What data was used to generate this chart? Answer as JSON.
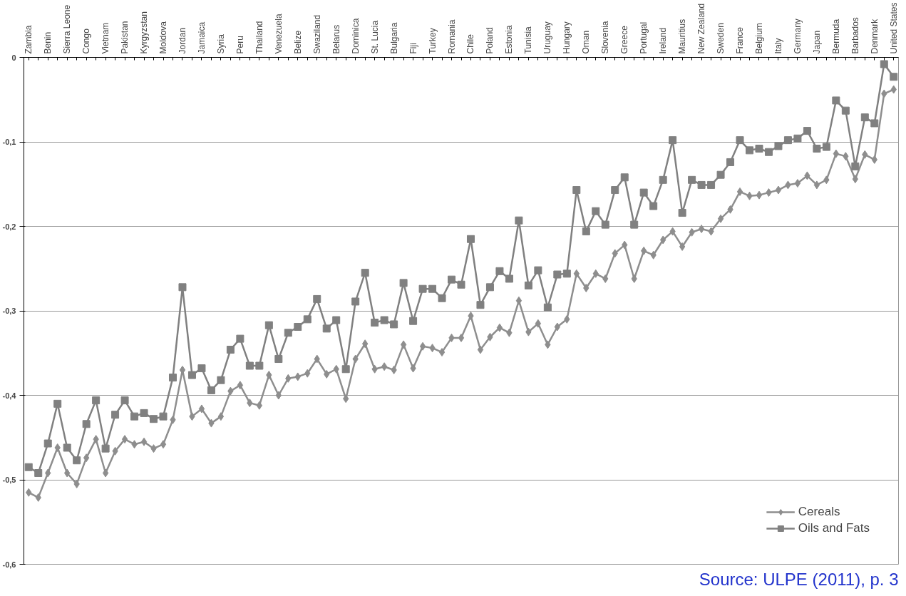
{
  "chart_data": {
    "type": "line",
    "categories": [
      "Zambia",
      null,
      "Benin",
      null,
      "Sierra Leone",
      null,
      "Congo",
      null,
      "Vietnam",
      null,
      "Pakistan",
      null,
      "Kyrgyzstan",
      null,
      "Moldova",
      null,
      "Jordan",
      null,
      "Jamaica",
      null,
      "Syria",
      null,
      "Peru",
      null,
      "Thailand",
      null,
      "Venezuela",
      null,
      "Belize",
      null,
      "Swaziland",
      null,
      "Belarus",
      null,
      "Dominica",
      null,
      "St. Lucia",
      null,
      "Bulgaria",
      null,
      "Fiji",
      null,
      "Turkey",
      null,
      "Romania",
      null,
      "Chile",
      null,
      "Poland",
      null,
      "Estonia",
      null,
      "Tunisia",
      null,
      "Uruguay",
      null,
      "Hungary",
      null,
      "Oman",
      null,
      "Slovenia",
      null,
      "Greece",
      null,
      "Portugal",
      null,
      "Ireland",
      null,
      "Mauritius",
      null,
      "New Zealand",
      null,
      "Sweden",
      null,
      "France",
      null,
      "Belgium",
      null,
      "Italy",
      null,
      "Germany",
      null,
      "Japan",
      null,
      "Bermuda",
      null,
      "Barbados",
      null,
      "Denmark",
      null,
      "United States"
    ],
    "series": [
      {
        "name": "Cereals",
        "color": "#8e8e8e",
        "marker": "diamond",
        "values": [
          -0.515,
          -0.521,
          -0.492,
          -0.462,
          -0.492,
          -0.505,
          -0.474,
          -0.452,
          -0.492,
          -0.466,
          -0.452,
          -0.458,
          -0.455,
          -0.463,
          -0.458,
          -0.429,
          -0.37,
          -0.425,
          -0.416,
          -0.433,
          -0.425,
          -0.395,
          -0.388,
          -0.409,
          -0.412,
          -0.376,
          -0.4,
          -0.38,
          -0.378,
          -0.374,
          -0.357,
          -0.375,
          -0.369,
          -0.404,
          -0.357,
          -0.339,
          -0.369,
          -0.366,
          -0.37,
          -0.34,
          -0.368,
          -0.342,
          -0.344,
          -0.349,
          -0.332,
          -0.332,
          -0.306,
          -0.346,
          -0.331,
          -0.32,
          -0.326,
          -0.288,
          -0.325,
          -0.315,
          -0.34,
          -0.319,
          -0.31,
          -0.256,
          -0.273,
          -0.256,
          -0.262,
          -0.232,
          -0.222,
          -0.262,
          -0.229,
          -0.234,
          -0.216,
          -0.206,
          -0.224,
          -0.207,
          -0.203,
          -0.206,
          -0.191,
          -0.18,
          -0.159,
          -0.164,
          -0.163,
          -0.16,
          -0.157,
          -0.151,
          -0.149,
          -0.14,
          -0.151,
          -0.145,
          -0.114,
          -0.117,
          -0.144,
          -0.115,
          -0.121,
          -0.043,
          -0.038
        ]
      },
      {
        "name": "Oils and Fats",
        "color": "#808080",
        "marker": "square",
        "values": [
          -0.485,
          -0.492,
          -0.457,
          -0.41,
          -0.462,
          -0.477,
          -0.434,
          -0.406,
          -0.463,
          -0.423,
          -0.406,
          -0.425,
          -0.421,
          -0.428,
          -0.425,
          -0.379,
          -0.272,
          -0.376,
          -0.368,
          -0.394,
          -0.382,
          -0.346,
          -0.333,
          -0.365,
          -0.365,
          -0.317,
          -0.357,
          -0.326,
          -0.319,
          -0.31,
          -0.286,
          -0.321,
          -0.311,
          -0.369,
          -0.289,
          -0.255,
          -0.314,
          -0.311,
          -0.316,
          -0.267,
          -0.312,
          -0.274,
          -0.274,
          -0.285,
          -0.263,
          -0.269,
          -0.215,
          -0.293,
          -0.272,
          -0.253,
          -0.262,
          -0.193,
          -0.27,
          -0.252,
          -0.296,
          -0.257,
          -0.256,
          -0.157,
          -0.206,
          -0.182,
          -0.198,
          -0.157,
          -0.142,
          -0.198,
          -0.16,
          -0.176,
          -0.145,
          -0.098,
          -0.184,
          -0.145,
          -0.151,
          -0.151,
          -0.139,
          -0.124,
          -0.098,
          -0.11,
          -0.108,
          -0.112,
          -0.105,
          -0.098,
          -0.096,
          -0.087,
          -0.108,
          -0.106,
          -0.051,
          -0.063,
          -0.129,
          -0.071,
          -0.078,
          -0.008,
          -0.023
        ]
      }
    ],
    "ylim": [
      -0.6,
      0
    ],
    "yticks": [
      {
        "value": 0,
        "label": "0"
      },
      {
        "value": -0.1,
        "label": "-0,1"
      },
      {
        "value": -0.2,
        "label": "-0,2"
      },
      {
        "value": -0.3,
        "label": "-0,3"
      },
      {
        "value": -0.4,
        "label": "-0,4"
      },
      {
        "value": -0.5,
        "label": "-0,5"
      },
      {
        "value": -0.6,
        "label": "-0,6"
      }
    ],
    "grid": "y",
    "legend": "bottom right",
    "line_style": "solid",
    "annotations": [
      "Source: ULPE (2011), p. 3"
    ]
  }
}
